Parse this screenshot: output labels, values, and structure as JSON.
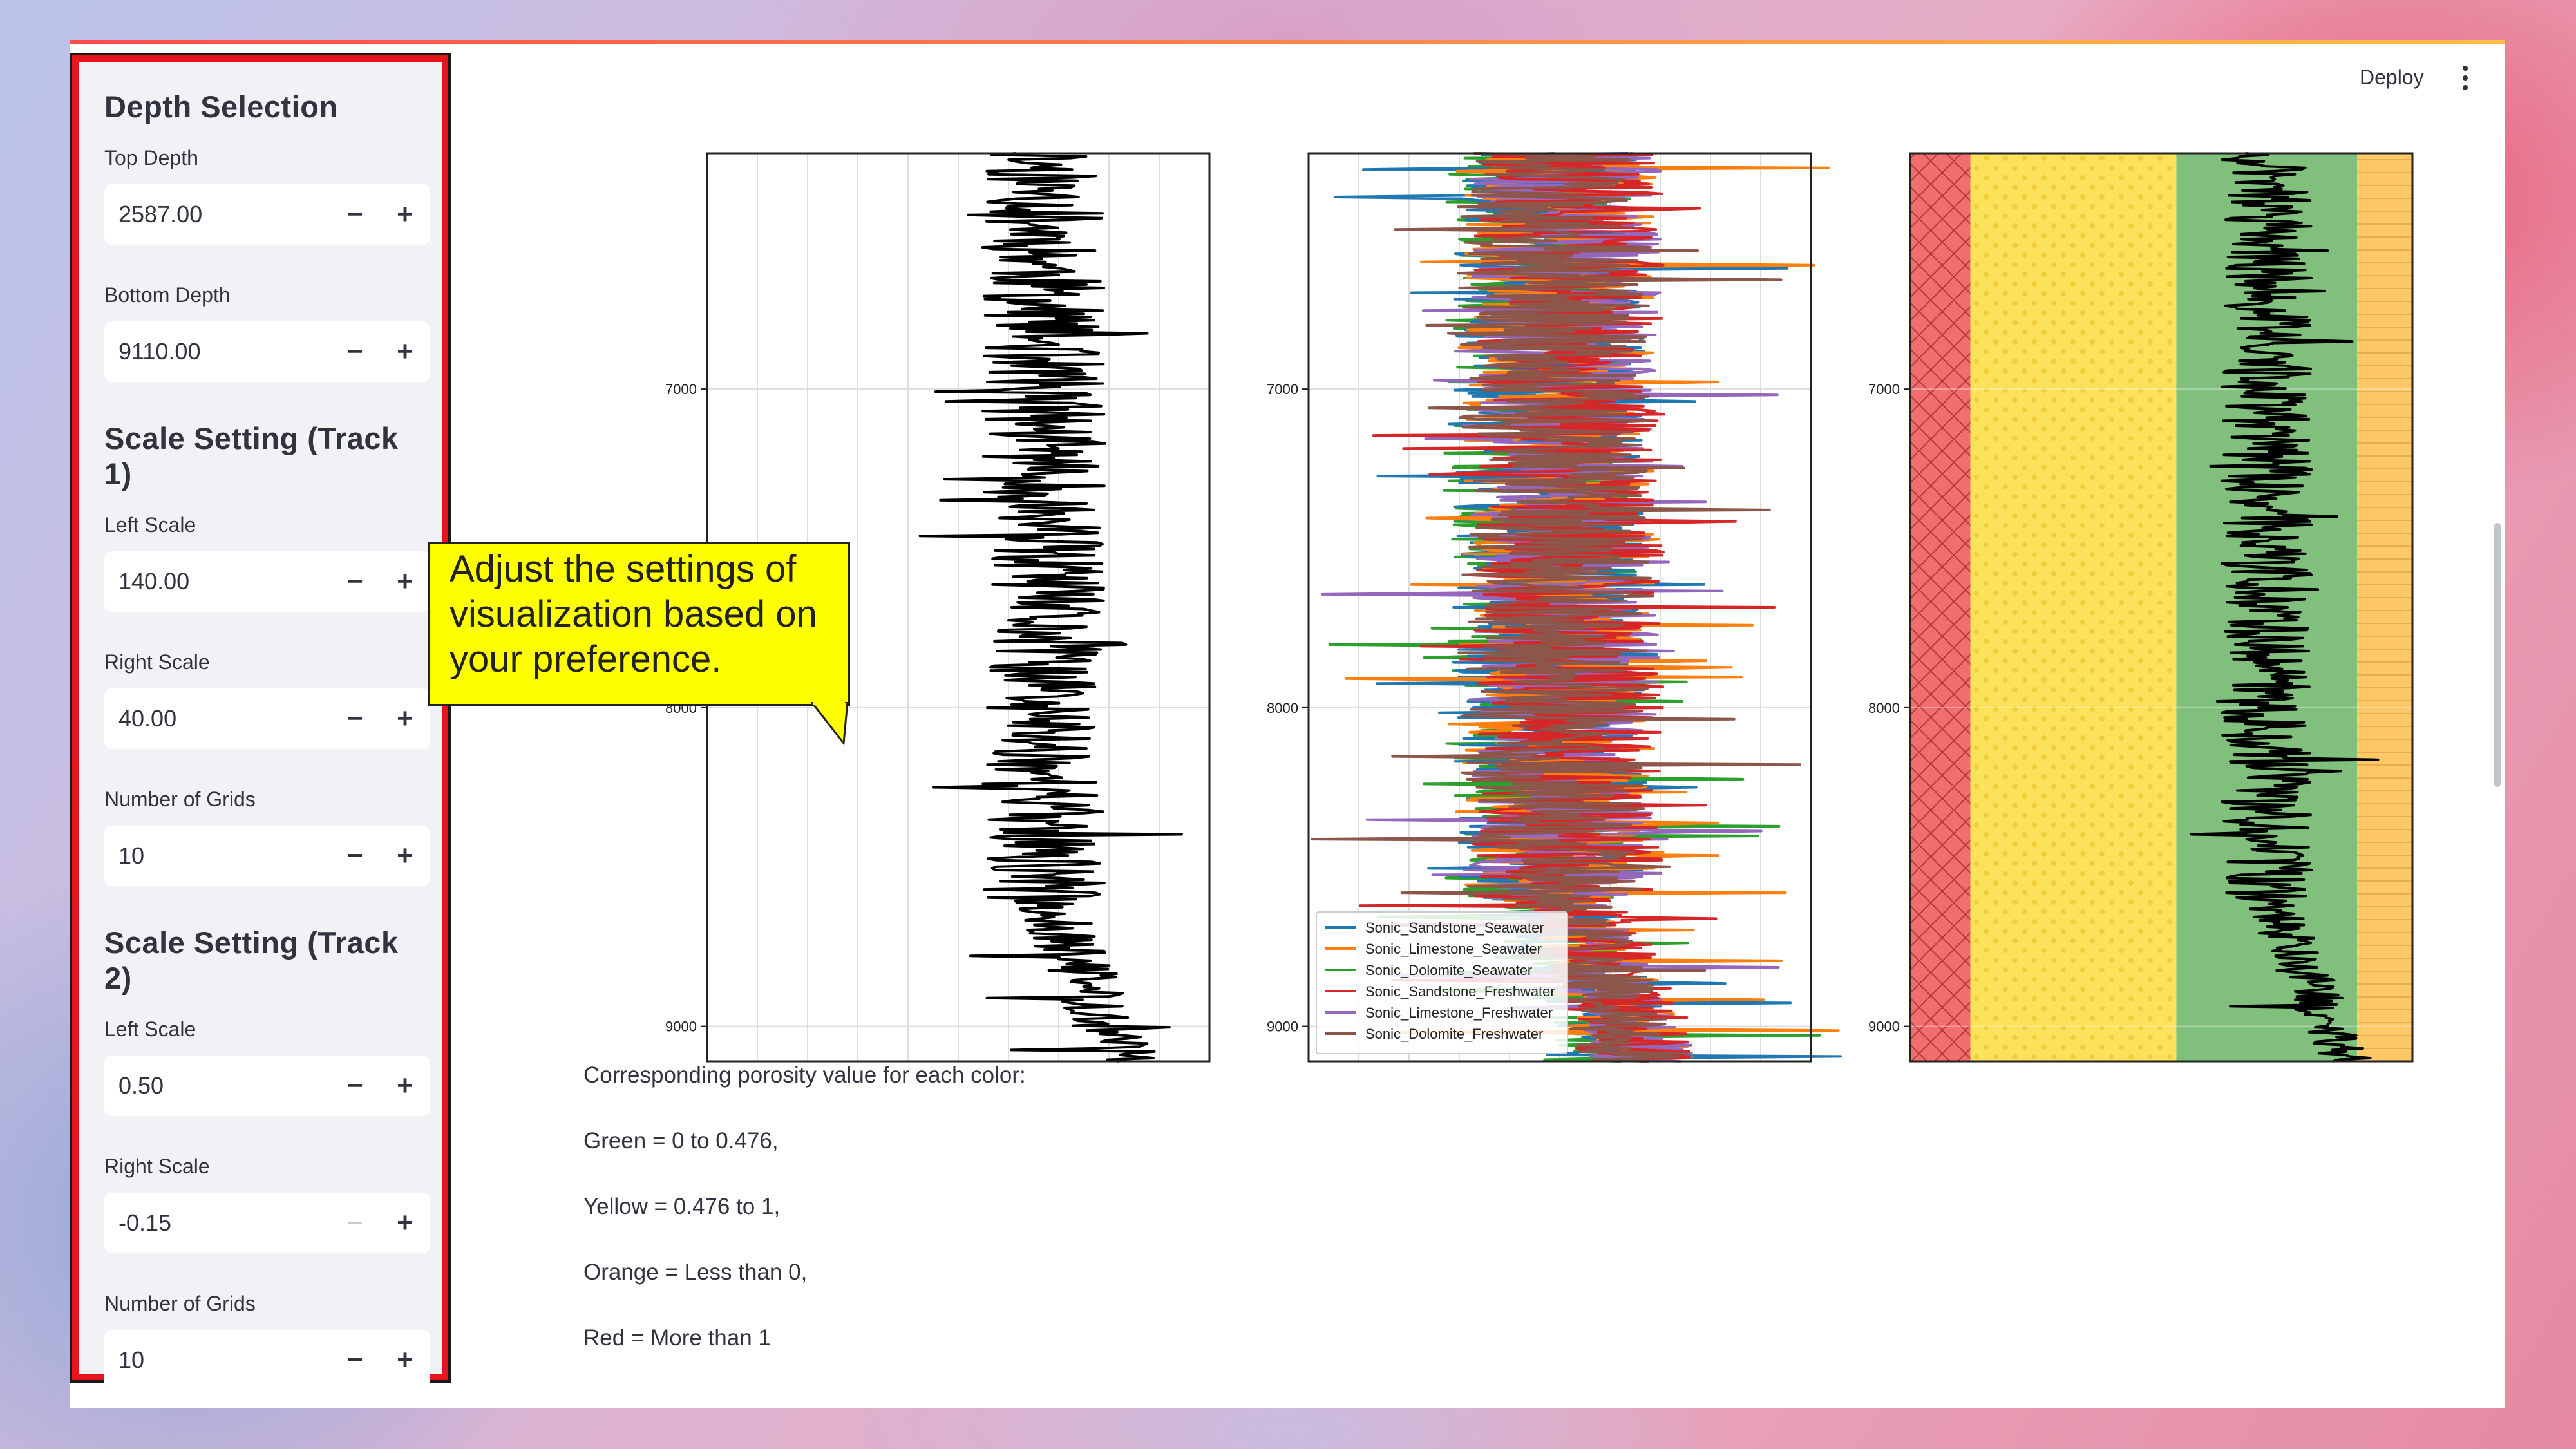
{
  "header": {
    "deploy_label": "Deploy"
  },
  "sidebar": {
    "sections": [
      {
        "title": "Depth Selection",
        "fields": [
          {
            "label": "Top Depth",
            "value": "2587.00",
            "minus_disabled": false
          },
          {
            "label": "Bottom Depth",
            "value": "9110.00",
            "minus_disabled": false
          }
        ]
      },
      {
        "title": "Scale Setting (Track 1)",
        "fields": [
          {
            "label": "Left Scale",
            "value": "140.00",
            "minus_disabled": false
          },
          {
            "label": "Right Scale",
            "value": "40.00",
            "minus_disabled": false
          },
          {
            "label": "Number of Grids",
            "value": "10",
            "minus_disabled": false
          }
        ]
      },
      {
        "title": "Scale Setting (Track 2)",
        "fields": [
          {
            "label": "Left Scale",
            "value": "0.50",
            "minus_disabled": false
          },
          {
            "label": "Right Scale",
            "value": "-0.15",
            "minus_disabled": true
          },
          {
            "label": "Number of Grids",
            "value": "10",
            "minus_disabled": false
          }
        ]
      }
    ],
    "minus_glyph": "−",
    "plus_glyph": "+"
  },
  "callout": {
    "text": "Adjust the settings of visualization based on your preference."
  },
  "porosity": {
    "lines": [
      "Corresponding porosity value for each color:",
      "Green = 0 to 0.476,",
      "Yellow = 0.476 to 1,",
      "Orange = Less than 0,",
      "Red = More than 1"
    ]
  },
  "chart_data": [
    {
      "type": "line",
      "ylim": [
        9110,
        6260
      ],
      "y_ticks": [
        "7000",
        "8000",
        "9000"
      ],
      "grid": true,
      "x_gridlines": 10,
      "series": [
        {
          "color": "#000000"
        }
      ]
    },
    {
      "type": "line",
      "ylim": [
        9110,
        6260
      ],
      "y_ticks": [
        "7000",
        "8000",
        "9000"
      ],
      "grid": true,
      "x_gridlines": 10,
      "legend_position": "lower-left",
      "series": [
        {
          "name": "Sonic_Sandstone_Seawater",
          "color": "#1f77b4"
        },
        {
          "name": "Sonic_Limestone_Seawater",
          "color": "#ff7f0e"
        },
        {
          "name": "Sonic_Dolomite_Seawater",
          "color": "#2ca02c"
        },
        {
          "name": "Sonic_Sandstone_Freshwater",
          "color": "#d62728"
        },
        {
          "name": "Sonic_Limestone_Freshwater",
          "color": "#9467bd"
        },
        {
          "name": "Sonic_Dolomite_Freshwater",
          "color": "#8c564b"
        }
      ]
    },
    {
      "type": "area",
      "ylim": [
        9110,
        6260
      ],
      "y_ticks": [
        "7000",
        "8000",
        "9000"
      ],
      "bands": [
        {
          "meaning": "More than 1",
          "color": "#f26d6d",
          "pattern": "crosshatch"
        },
        {
          "meaning": "0.476 to 1",
          "color": "#fce25a",
          "pattern": "dots"
        },
        {
          "meaning": "0 to 0.476",
          "color": "#80c07c",
          "pattern": "none"
        },
        {
          "meaning": "Less than 0",
          "color": "#ffc866",
          "pattern": "lines"
        }
      ],
      "series": [
        {
          "color": "#000000"
        }
      ]
    }
  ]
}
